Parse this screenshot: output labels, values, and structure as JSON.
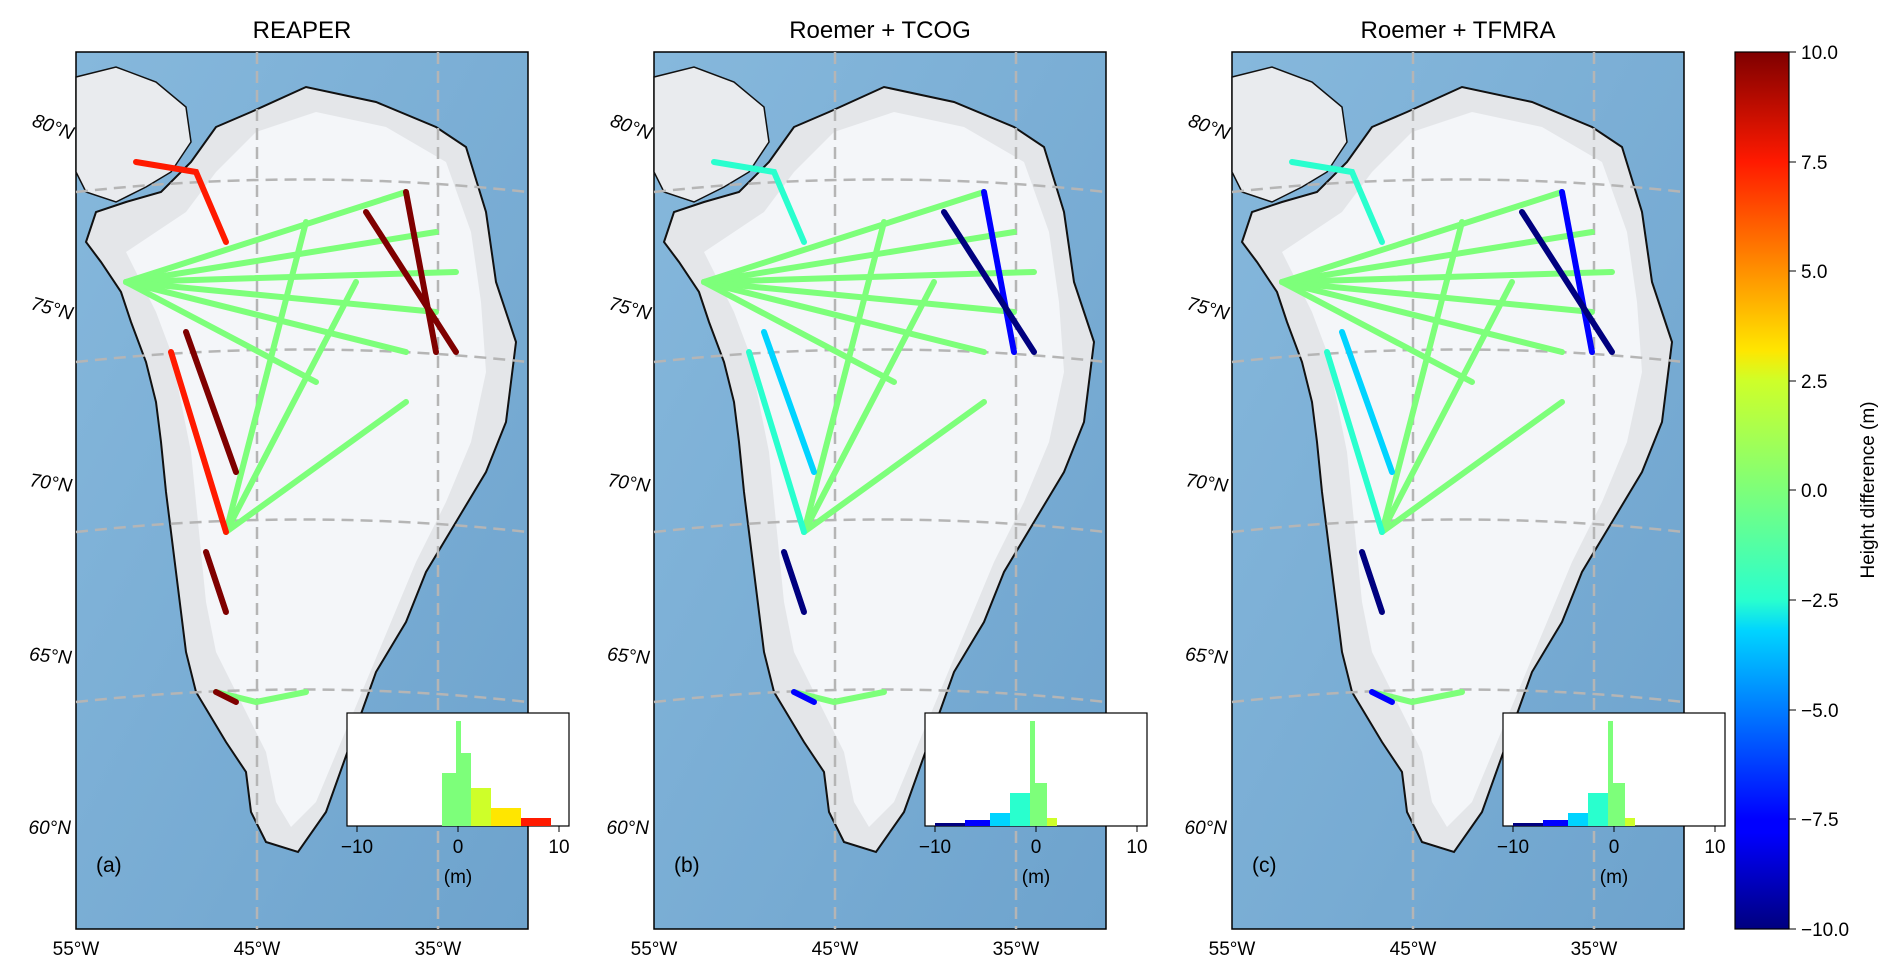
{
  "panels": [
    {
      "title": "REAPER",
      "label": "(a)",
      "lat_labels": [
        "80°N",
        "75°N",
        "70°N",
        "65°N",
        "60°N"
      ],
      "lon_labels": [
        "55°W",
        "45°W",
        "35°W"
      ],
      "hist": {
        "xticks": [
          "−10",
          "0",
          "10"
        ],
        "xlabel": "(m)",
        "bias": "positive"
      }
    },
    {
      "title": "Roemer + TCOG",
      "label": "(b)",
      "lat_labels": [
        "80°N",
        "75°N",
        "70°N",
        "65°N",
        "60°N"
      ],
      "lon_labels": [
        "55°W",
        "45°W",
        "35°W"
      ],
      "hist": {
        "xticks": [
          "−10",
          "0",
          "10"
        ],
        "xlabel": "(m)",
        "bias": "negative"
      }
    },
    {
      "title": "Roemer + TFMRA",
      "label": "(c)",
      "lat_labels": [
        "80°N",
        "75°N",
        "70°N",
        "65°N",
        "60°N"
      ],
      "lon_labels": [
        "55°W",
        "45°W",
        "35°W"
      ],
      "hist": {
        "xticks": [
          "−10",
          "0",
          "10"
        ],
        "xlabel": "(m)",
        "bias": "negative"
      }
    }
  ],
  "colorbar": {
    "label": "Height difference (m)",
    "ticks": [
      "10.0",
      "7.5",
      "5.0",
      "2.5",
      "0.0",
      "−2.5",
      "−5.0",
      "−7.5",
      "−10.0"
    ],
    "range": [
      -10,
      10
    ],
    "colormap": "jet"
  },
  "colors": {
    "ocean": "#7fb0d6",
    "ice": "#f3f5f8",
    "graticule": "#b5b5b5",
    "coast": "#111111"
  }
}
